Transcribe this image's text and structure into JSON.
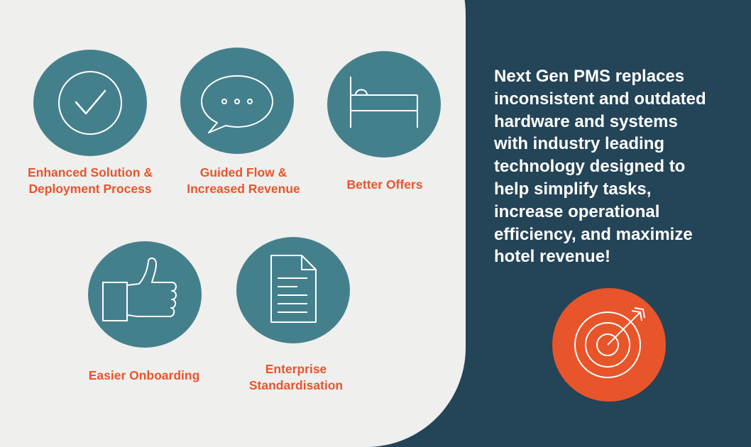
{
  "features": [
    {
      "label_lines": [
        "Enhanced Solution &",
        "Deployment Process"
      ],
      "icon": "check-circle-icon"
    },
    {
      "label_lines": [
        "Guided Flow &",
        "Increased Revenue"
      ],
      "icon": "chat-bubble-icon"
    },
    {
      "label_lines": [
        "Better Offers"
      ],
      "icon": "bed-icon"
    },
    {
      "label_lines": [
        "Easier Onboarding"
      ],
      "icon": "thumbs-up-icon"
    },
    {
      "label_lines": [
        "Enterprise",
        "Standardisation"
      ],
      "icon": "document-icon"
    }
  ],
  "description_lines": [
    "Next Gen PMS replaces",
    "inconsistent and outdated",
    "hardware and systems",
    "with industry leading",
    "technology designed to",
    "help simplify tasks,",
    "increase operational",
    "efficiency, and maximize",
    "hotel revenue!"
  ],
  "target_icon": "target-arrow-icon",
  "colors": {
    "dark_background": "#244457",
    "light_panel": "#efefee",
    "icon_circle": "#44808c",
    "accent_orange": "#e8552b",
    "text_white": "#ffffff"
  }
}
